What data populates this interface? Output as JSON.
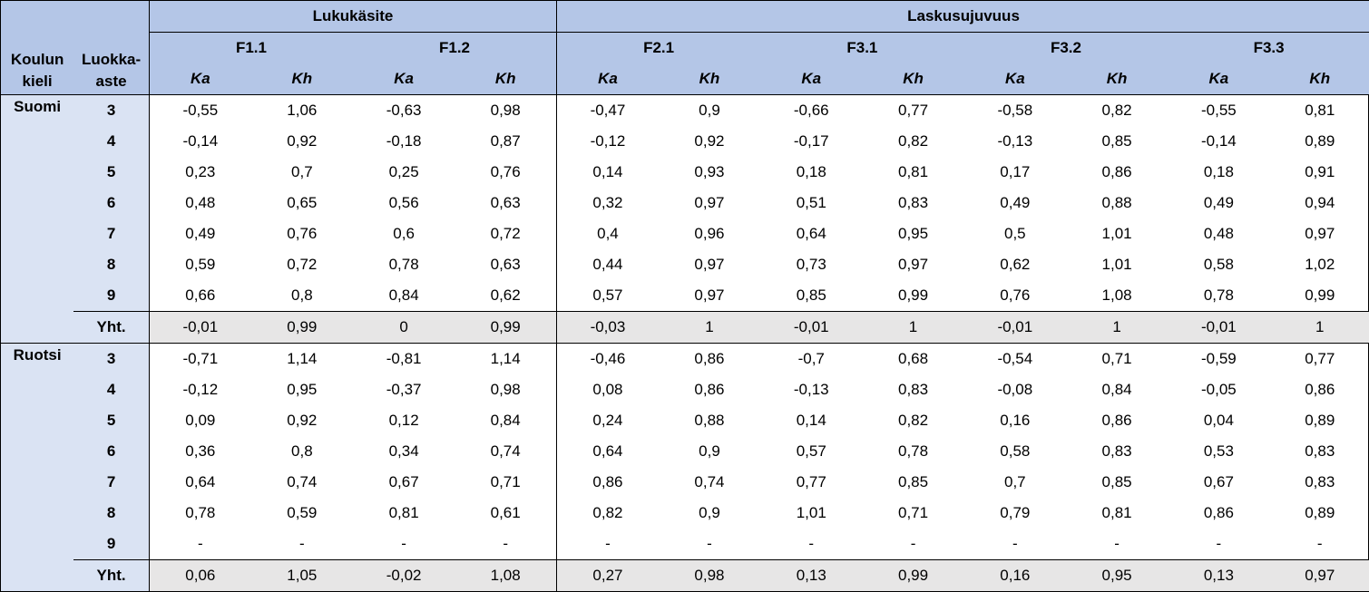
{
  "header": {
    "col_language": [
      "Koulun",
      "kieli"
    ],
    "col_grade": [
      "Luokka-",
      "aste"
    ],
    "groups": [
      "Lukukäsite",
      "Laskusujuvuus"
    ],
    "factors": [
      "F1.1",
      "F1.2",
      "F2.1",
      "F3.1",
      "F3.2",
      "F3.3"
    ],
    "stat_labels": [
      "Ka",
      "Kh"
    ]
  },
  "sections": [
    {
      "language": "Suomi",
      "rows": [
        {
          "grade": "3",
          "values": [
            "-0,55",
            "1,06",
            "-0,63",
            "0,98",
            "-0,47",
            "0,9",
            "-0,66",
            "0,77",
            "-0,58",
            "0,82",
            "-0,55",
            "0,81"
          ]
        },
        {
          "grade": "4",
          "values": [
            "-0,14",
            "0,92",
            "-0,18",
            "0,87",
            "-0,12",
            "0,92",
            "-0,17",
            "0,82",
            "-0,13",
            "0,85",
            "-0,14",
            "0,89"
          ]
        },
        {
          "grade": "5",
          "values": [
            "0,23",
            "0,7",
            "0,25",
            "0,76",
            "0,14",
            "0,93",
            "0,18",
            "0,81",
            "0,17",
            "0,86",
            "0,18",
            "0,91"
          ]
        },
        {
          "grade": "6",
          "values": [
            "0,48",
            "0,65",
            "0,56",
            "0,63",
            "0,32",
            "0,97",
            "0,51",
            "0,83",
            "0,49",
            "0,88",
            "0,49",
            "0,94"
          ]
        },
        {
          "grade": "7",
          "values": [
            "0,49",
            "0,76",
            "0,6",
            "0,72",
            "0,4",
            "0,96",
            "0,64",
            "0,95",
            "0,5",
            "1,01",
            "0,48",
            "0,97"
          ]
        },
        {
          "grade": "8",
          "values": [
            "0,59",
            "0,72",
            "0,78",
            "0,63",
            "0,44",
            "0,97",
            "0,73",
            "0,97",
            "0,62",
            "1,01",
            "0,58",
            "1,02"
          ]
        },
        {
          "grade": "9",
          "values": [
            "0,66",
            "0,8",
            "0,84",
            "0,62",
            "0,57",
            "0,97",
            "0,85",
            "0,99",
            "0,76",
            "1,08",
            "0,78",
            "0,99"
          ]
        }
      ],
      "total": {
        "grade": "Yht.",
        "values": [
          "-0,01",
          "0,99",
          "0",
          "0,99",
          "-0,03",
          "1",
          "-0,01",
          "1",
          "-0,01",
          "1",
          "-0,01",
          "1"
        ]
      }
    },
    {
      "language": "Ruotsi",
      "rows": [
        {
          "grade": "3",
          "values": [
            "-0,71",
            "1,14",
            "-0,81",
            "1,14",
            "-0,46",
            "0,86",
            "-0,7",
            "0,68",
            "-0,54",
            "0,71",
            "-0,59",
            "0,77"
          ]
        },
        {
          "grade": "4",
          "values": [
            "-0,12",
            "0,95",
            "-0,37",
            "0,98",
            "0,08",
            "0,86",
            "-0,13",
            "0,83",
            "-0,08",
            "0,84",
            "-0,05",
            "0,86"
          ]
        },
        {
          "grade": "5",
          "values": [
            "0,09",
            "0,92",
            "0,12",
            "0,84",
            "0,24",
            "0,88",
            "0,14",
            "0,82",
            "0,16",
            "0,86",
            "0,04",
            "0,89"
          ]
        },
        {
          "grade": "6",
          "values": [
            "0,36",
            "0,8",
            "0,34",
            "0,74",
            "0,64",
            "0,9",
            "0,57",
            "0,78",
            "0,58",
            "0,83",
            "0,53",
            "0,83"
          ]
        },
        {
          "grade": "7",
          "values": [
            "0,64",
            "0,74",
            "0,67",
            "0,71",
            "0,86",
            "0,74",
            "0,77",
            "0,85",
            "0,7",
            "0,85",
            "0,67",
            "0,83"
          ]
        },
        {
          "grade": "8",
          "values": [
            "0,78",
            "0,59",
            "0,81",
            "0,61",
            "0,82",
            "0,9",
            "1,01",
            "0,71",
            "0,79",
            "0,81",
            "0,86",
            "0,89"
          ]
        },
        {
          "grade": "9",
          "values": [
            "-",
            "-",
            "-",
            "-",
            "-",
            "-",
            "-",
            "-",
            "-",
            "-",
            "-",
            "-"
          ]
        }
      ],
      "total": {
        "grade": "Yht.",
        "values": [
          "0,06",
          "1,05",
          "-0,02",
          "1,08",
          "0,27",
          "0,98",
          "0,13",
          "0,99",
          "0,16",
          "0,95",
          "0,13",
          "0,97"
        ]
      }
    }
  ],
  "colors": {
    "header_bg": "#b4c6e7",
    "side_bg": "#dae3f3",
    "total_bg": "#e7e6e6",
    "border": "#000000"
  }
}
